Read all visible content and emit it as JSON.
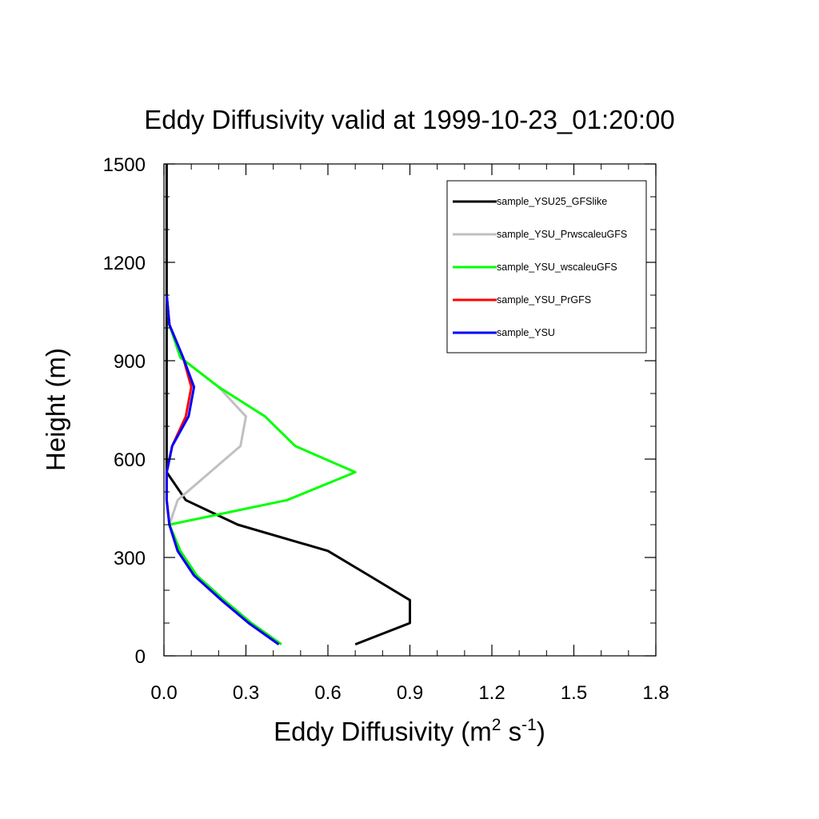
{
  "chart_data": {
    "type": "line",
    "title": "Eddy Diffusivity valid at 1999-10-23_01:20:00",
    "xlabel": {
      "prefix": "Eddy Diffusivity (m",
      "sup1": "2",
      "mid": " s",
      "sup2": "-1",
      "suffix": ")"
    },
    "ylabel": "Height (m)",
    "xlim": [
      0,
      1.8
    ],
    "ylim": [
      0,
      1500
    ],
    "xticks": [
      "0.0",
      "0.3",
      "0.6",
      "0.9",
      "1.2",
      "1.5",
      "1.8"
    ],
    "yticks": [
      "0",
      "300",
      "600",
      "900",
      "1200",
      "1500"
    ],
    "legend_position": "top-right",
    "series": [
      {
        "name": "sample_YSU25_GFSlike",
        "color": "#000000",
        "points": [
          [
            0.7,
            35
          ],
          [
            0.9,
            100
          ],
          [
            0.9,
            170
          ],
          [
            0.75,
            245
          ],
          [
            0.6,
            320
          ],
          [
            0.27,
            400
          ],
          [
            0.08,
            475
          ],
          [
            0.01,
            560
          ],
          [
            0.01,
            640
          ],
          [
            0.01,
            730
          ],
          [
            0.01,
            820
          ],
          [
            0.01,
            910
          ],
          [
            0.01,
            1010
          ],
          [
            0.01,
            1100
          ],
          [
            0.01,
            1200
          ],
          [
            0.01,
            1300
          ],
          [
            0.01,
            1400
          ],
          [
            0.01,
            1500
          ]
        ]
      },
      {
        "name": "sample_YSU_PrwscaleuGFS",
        "color": "#c0c0c0",
        "points": [
          [
            0.43,
            35
          ],
          [
            0.32,
            100
          ],
          [
            0.22,
            170
          ],
          [
            0.12,
            245
          ],
          [
            0.06,
            320
          ],
          [
            0.02,
            400
          ],
          [
            0.05,
            475
          ],
          [
            0.28,
            640
          ],
          [
            0.3,
            730
          ],
          [
            0.2,
            820
          ],
          [
            0.06,
            910
          ],
          [
            0.02,
            1010
          ],
          [
            0.01,
            1100
          ]
        ]
      },
      {
        "name": "sample_YSU_wscaleuGFS",
        "color": "#00ff00",
        "points": [
          [
            0.43,
            35
          ],
          [
            0.32,
            100
          ],
          [
            0.22,
            170
          ],
          [
            0.12,
            245
          ],
          [
            0.06,
            320
          ],
          [
            0.02,
            400
          ],
          [
            0.45,
            475
          ],
          [
            0.7,
            560
          ],
          [
            0.48,
            640
          ],
          [
            0.37,
            730
          ],
          [
            0.2,
            820
          ],
          [
            0.06,
            910
          ],
          [
            0.02,
            1010
          ],
          [
            0.01,
            1100
          ]
        ]
      },
      {
        "name": "sample_YSU_PrGFS",
        "color": "#ff0000",
        "points": [
          [
            0.42,
            35
          ],
          [
            0.31,
            100
          ],
          [
            0.21,
            170
          ],
          [
            0.11,
            245
          ],
          [
            0.05,
            320
          ],
          [
            0.02,
            400
          ],
          [
            0.01,
            475
          ],
          [
            0.01,
            560
          ],
          [
            0.03,
            640
          ],
          [
            0.08,
            730
          ],
          [
            0.1,
            820
          ],
          [
            0.07,
            910
          ],
          [
            0.02,
            1010
          ],
          [
            0.01,
            1100
          ]
        ]
      },
      {
        "name": "sample_YSU",
        "color": "#0000ff",
        "points": [
          [
            0.42,
            35
          ],
          [
            0.31,
            100
          ],
          [
            0.21,
            170
          ],
          [
            0.11,
            245
          ],
          [
            0.05,
            320
          ],
          [
            0.02,
            400
          ],
          [
            0.01,
            475
          ],
          [
            0.01,
            560
          ],
          [
            0.03,
            640
          ],
          [
            0.09,
            730
          ],
          [
            0.11,
            820
          ],
          [
            0.07,
            910
          ],
          [
            0.02,
            1010
          ],
          [
            0.01,
            1100
          ]
        ]
      }
    ]
  }
}
